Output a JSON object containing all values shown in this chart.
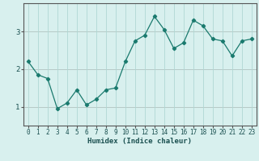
{
  "x": [
    0,
    1,
    2,
    3,
    4,
    5,
    6,
    7,
    8,
    9,
    10,
    11,
    12,
    13,
    14,
    15,
    16,
    17,
    18,
    19,
    20,
    21,
    22,
    23
  ],
  "y": [
    2.2,
    1.85,
    1.75,
    0.95,
    1.1,
    1.45,
    1.05,
    1.2,
    1.45,
    1.5,
    2.2,
    2.75,
    2.9,
    3.4,
    3.05,
    2.55,
    2.7,
    3.3,
    3.15,
    2.8,
    2.75,
    2.35,
    2.75,
    2.8
  ],
  "line_color": "#1a7a6e",
  "marker": "D",
  "marker_size": 2.2,
  "bg_color": "#d8f0ee",
  "grid_color": "#b0d8d4",
  "red_line_color": "#e07070",
  "xlabel": "Humidex (Indice chaleur)",
  "yticks": [
    1,
    2,
    3
  ],
  "xlim": [
    -0.5,
    23.5
  ],
  "ylim": [
    0.5,
    3.75
  ],
  "axis_color": "#555555",
  "font_color": "#1a5050",
  "xlabel_fontsize": 6.5,
  "tick_fontsize": 5.5,
  "ytick_fontsize": 6.5,
  "linewidth": 0.9
}
